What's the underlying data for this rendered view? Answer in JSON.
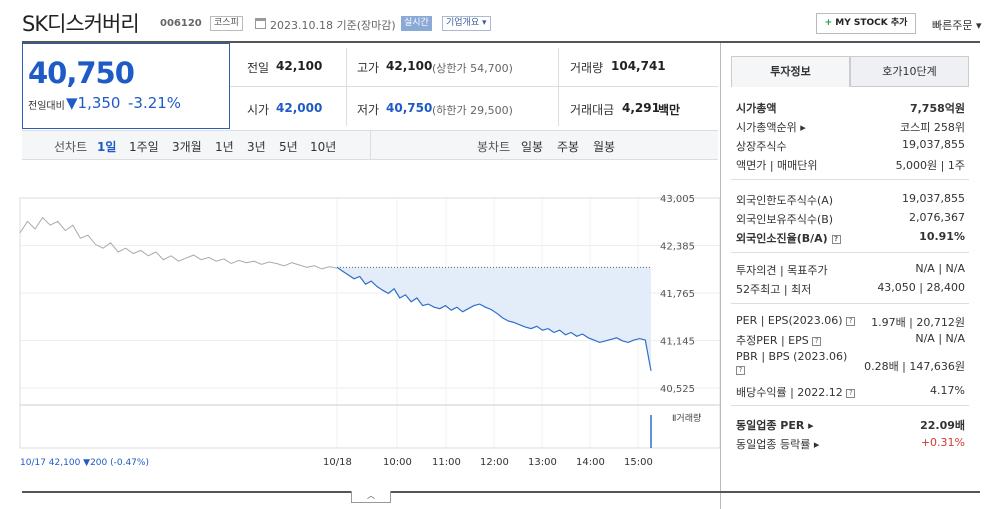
{
  "header": {
    "title": "SK디스커버리",
    "code": "006120",
    "market_badge": "코스피",
    "date_text": "2023.10.18 기준(장마감)",
    "live_label": "실시간",
    "company_label": "기업개요 ▾",
    "mystock_plus": "+",
    "mystock_label": "MY STOCK 추가",
    "quick_order_label": "빠른주문 ▾"
  },
  "price": {
    "current": "40,750",
    "prev_label": "전일대비",
    "change": "▼1,350",
    "change_pct": "-3.21%"
  },
  "quote": {
    "prev_close_label": "전일",
    "prev_close": "42,100",
    "high_label": "고가",
    "high": "42,100",
    "upper_limit": "(상한가 54,700)",
    "volume_label": "거래량",
    "volume": "104,741",
    "open_label": "시가",
    "open": "42,000",
    "low_label": "저가",
    "low": "40,750",
    "lower_limit": "(하한가 29,500)",
    "amount_label": "거래대금",
    "amount": "4,291",
    "amount_unit": "백만"
  },
  "tabs": {
    "line_chart_label": "선차트",
    "periods": [
      "1일",
      "1주일",
      "3개월",
      "1년",
      "3년",
      "5년",
      "10년"
    ],
    "candle_label": "봉차트",
    "candles": [
      "일봉",
      "주봉",
      "월봉"
    ]
  },
  "chart_data": {
    "type": "line",
    "y_ticks": [
      "43,005",
      "42,385",
      "41,765",
      "41,145",
      "40,525"
    ],
    "ylim": [
      40525,
      43005
    ],
    "baseline": 42100,
    "x_ticks": [
      "10/18",
      "10:00",
      "11:00",
      "12:00",
      "13:00",
      "14:00",
      "15:00"
    ],
    "volume_label": "Ⅱ거래량",
    "prev_day_summary": "10/17  42,100 ▼200 (-0.47%)",
    "series": [
      {
        "values": [
          42550,
          42700,
          42600,
          42750,
          42650,
          42700,
          42580,
          42650,
          42480,
          42520,
          42400,
          42350,
          42420,
          42300,
          42350,
          42280,
          42320,
          42250,
          42300,
          42200,
          42250,
          42180,
          42220,
          42260,
          42200,
          42230,
          42180,
          42210,
          42150,
          42190,
          42160,
          42180,
          42140,
          42170,
          42150,
          42120,
          42160,
          42130,
          42100,
          42120,
          42080,
          42110,
          42090
        ]
      },
      {
        "values": [
          42100,
          42050,
          42000,
          41950,
          41980,
          41880,
          41920,
          41850,
          41800,
          41760,
          41820,
          41700,
          41740,
          41650,
          41700,
          41600,
          41620,
          41580,
          41560,
          41600,
          41540,
          41580,
          41520,
          41560,
          41600,
          41620,
          41580,
          41550,
          41500,
          41440,
          41400,
          41380,
          41350,
          41320,
          41300,
          41330,
          41280,
          41300,
          41250,
          41280,
          41220,
          41250,
          41200,
          41230,
          41180,
          41150,
          41120,
          41140,
          41160,
          41180,
          41140,
          41120,
          41150,
          41170,
          41150,
          40750
        ]
      }
    ]
  },
  "panel": {
    "tab_active": "투자정보",
    "tab_other": "호가10단계",
    "rows1": [
      {
        "label": "시가총액",
        "value": "7,758억원"
      },
      {
        "label": "시가총액순위 ▸",
        "value": "코스피 258위"
      },
      {
        "label": "상장주식수",
        "value": "19,037,855"
      },
      {
        "label": "액면가 | 매매단위",
        "value": "5,000원 | 1주"
      }
    ],
    "rows2": [
      {
        "label": "외국인한도주식수(A)",
        "value": "19,037,855"
      },
      {
        "label": "외국인보유주식수(B)",
        "value": "2,076,367"
      },
      {
        "label": "외국인소진율(B/A)",
        "value": "10.91%"
      }
    ],
    "rows3": [
      {
        "label": "투자의견 | 목표주가",
        "value": "N/A | N/A"
      },
      {
        "label": "52주최고 | 최저",
        "value": "43,050 | 28,400"
      }
    ],
    "rows4": [
      {
        "label": "PER | EPS(2023.06)",
        "value": "1.97배 | 20,712원"
      },
      {
        "label": "추정PER | EPS",
        "value": "N/A | N/A"
      },
      {
        "label": "PBR | BPS (2023.06)",
        "value": "0.28배 | 147,636원"
      },
      {
        "label": "배당수익률 | 2022.12",
        "value": "4.17%"
      }
    ],
    "rows5": [
      {
        "label": "동일업종 PER ▸",
        "value": "22.09배"
      },
      {
        "label": "동일업종 등락률 ▸",
        "value": "+0.31%"
      }
    ]
  }
}
